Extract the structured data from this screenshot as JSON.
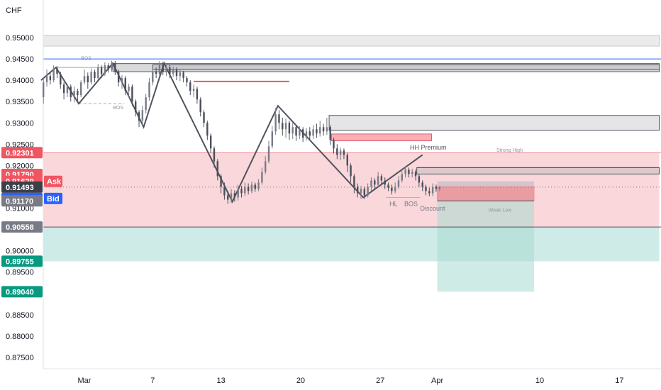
{
  "chart_data": {
    "type": "candlestick",
    "currency_label": "CHF",
    "y_ticks": [
      "0.95000",
      "0.94500",
      "0.94000",
      "0.93500",
      "0.93000",
      "0.92500",
      "0.92000",
      "0.91500",
      "0.91000",
      "0.90500",
      "0.90000",
      "0.89500",
      "0.89000",
      "0.88500",
      "0.88000",
      "0.87500"
    ],
    "x_ticks": [
      {
        "label": "Mar",
        "day": 0
      },
      {
        "label": "7",
        "day": 6
      },
      {
        "label": "13",
        "day": 12
      },
      {
        "label": "20",
        "day": 19
      },
      {
        "label": "27",
        "day": 26
      },
      {
        "label": "Apr",
        "day": 31
      },
      {
        "label": "10",
        "day": 40
      },
      {
        "label": "17",
        "day": 47
      }
    ],
    "ylim": [
      0.8735,
      0.9535
    ],
    "xlim_days": [
      -3.8,
      50.5
    ],
    "colors": {
      "up": "#787b86",
      "down": "#4a4e5a",
      "swing_line": "#50535e",
      "premium_zone": "#f7c9cd",
      "discount_zone": "#c9e9e4",
      "supply_zone": "#f7a6ab",
      "grey_zone": "#d6d6d9",
      "ask": "#f05561",
      "bid": "#2962ff",
      "last": "#505050",
      "green_tag": "#089981",
      "blue_line": "#2962ff"
    },
    "price_tags": [
      {
        "label": "0.92301",
        "value": 0.92301,
        "kind": "red"
      },
      {
        "label": "0.91790",
        "value": 0.9179,
        "kind": "red"
      },
      {
        "label": "0.91629",
        "value": 0.91629,
        "kind": "ask",
        "side_label": "Ask"
      },
      {
        "label": "0.91493",
        "value": 0.91493,
        "kind": "dark"
      },
      {
        "label": "0.91493",
        "value": 0.91493,
        "kind": "bid",
        "side_label": "Bid"
      },
      {
        "label": "0.91170",
        "value": 0.9117,
        "kind": "grey"
      },
      {
        "label": "0.90558",
        "value": 0.90558,
        "kind": "grey"
      },
      {
        "label": "0.89755",
        "value": 0.89755,
        "kind": "green"
      },
      {
        "label": "0.89040",
        "value": 0.8904,
        "kind": "green"
      }
    ],
    "annotations": [
      {
        "text": "BOS",
        "day": -0.3,
        "value": 0.9448
      },
      {
        "text": "BOS",
        "day": 2.5,
        "value": 0.9332
      },
      {
        "text": "HH Premium",
        "day": 28.6,
        "value": 0.9237
      },
      {
        "text": "Strong High",
        "day": 36.2,
        "value": 0.9232
      },
      {
        "text": "HL",
        "day": 26.8,
        "value": 0.9105
      },
      {
        "text": "BOS",
        "day": 28.1,
        "value": 0.9105
      },
      {
        "text": "Discount",
        "day": 29.5,
        "value": 0.9094
      },
      {
        "text": "Weak Low",
        "day": 35.5,
        "value": 0.9092
      }
    ],
    "zones": {
      "top_grey": {
        "x0": -3.8,
        "x1": 50.5,
        "y0": 0.948,
        "y1": 0.9505
      },
      "premium": {
        "x0": -3.8,
        "x1": 50.5,
        "y0": 0.90558,
        "y1": 0.92301
      },
      "discount": {
        "x0": -3.8,
        "x1": 50.5,
        "y0": 0.89755,
        "y1": 0.90558
      },
      "ob_top": {
        "x0": 6.0,
        "x1": 50.5,
        "y0": 0.9425,
        "y1": 0.9436
      },
      "ob_top2": {
        "x0": 2.5,
        "x1": 50.5,
        "y0": 0.942,
        "y1": 0.9439
      },
      "grey_mid": {
        "x0": 21.5,
        "x1": 50.5,
        "y0": 0.92825,
        "y1": 0.93175
      },
      "red_mid": {
        "x0": 21.7,
        "x1": 30.5,
        "y0": 0.9258,
        "y1": 0.9274
      },
      "grey_small": {
        "x0": 29.2,
        "x1": 50.5,
        "y0": 0.918,
        "y1": 0.9195
      },
      "red_box": {
        "x0": 31.0,
        "x1": 39.5,
        "y0": 0.9117,
        "y1": 0.915
      },
      "discount_box": {
        "x0": 31.0,
        "x1": 39.5,
        "y0": 0.8904,
        "y1": 0.9117
      },
      "grey_box2": {
        "x0": 31.0,
        "x1": 39.5,
        "y0": 0.9117,
        "y1": 0.9163
      },
      "red_line": {
        "x0": 9.6,
        "x1": 18.0,
        "value": 0.9397
      },
      "blue_line": {
        "value": 0.945
      }
    },
    "swing_points": [
      {
        "day": -3.8,
        "value": 0.94
      },
      {
        "day": -2.5,
        "value": 0.943
      },
      {
        "day": -0.5,
        "value": 0.9345
      },
      {
        "day": 2.5,
        "value": 0.944
      },
      {
        "day": 5.2,
        "value": 0.929
      },
      {
        "day": 7.0,
        "value": 0.944
      },
      {
        "day": 13.0,
        "value": 0.9115
      },
      {
        "day": 17.0,
        "value": 0.934
      },
      {
        "day": 24.5,
        "value": 0.9125
      },
      {
        "day": 29.7,
        "value": 0.9225
      }
    ],
    "candles": [
      [
        -3.6,
        0.936,
        0.9395,
        0.9405,
        0.9345
      ],
      [
        -3.3,
        0.9395,
        0.941,
        0.9425,
        0.9385
      ],
      [
        -3.0,
        0.941,
        0.94,
        0.942,
        0.939
      ],
      [
        -2.7,
        0.94,
        0.9428,
        0.9435,
        0.9395
      ],
      [
        -2.4,
        0.9428,
        0.9415,
        0.9433,
        0.9405
      ],
      [
        -2.1,
        0.9415,
        0.939,
        0.942,
        0.938
      ],
      [
        -1.8,
        0.939,
        0.937,
        0.9395,
        0.9355
      ],
      [
        -1.5,
        0.937,
        0.9385,
        0.9392,
        0.936
      ],
      [
        -1.2,
        0.9385,
        0.936,
        0.939,
        0.935
      ],
      [
        -0.9,
        0.936,
        0.9375,
        0.9385,
        0.9348
      ],
      [
        -0.6,
        0.9375,
        0.9365,
        0.938,
        0.935
      ],
      [
        -0.3,
        0.9365,
        0.9395,
        0.94,
        0.936
      ],
      [
        0.0,
        0.9395,
        0.941,
        0.9425,
        0.939
      ],
      [
        0.3,
        0.941,
        0.9395,
        0.9418,
        0.938
      ],
      [
        0.6,
        0.9395,
        0.942,
        0.9428,
        0.939
      ],
      [
        0.9,
        0.942,
        0.9405,
        0.9425,
        0.9395
      ],
      [
        1.2,
        0.9405,
        0.943,
        0.9438,
        0.94
      ],
      [
        1.5,
        0.943,
        0.9415,
        0.9435,
        0.9405
      ],
      [
        1.8,
        0.9415,
        0.9435,
        0.9442,
        0.941
      ],
      [
        2.1,
        0.9435,
        0.9425,
        0.944,
        0.9418
      ],
      [
        2.4,
        0.9425,
        0.944,
        0.9446,
        0.942
      ],
      [
        2.7,
        0.944,
        0.942,
        0.9445,
        0.9412
      ],
      [
        3.0,
        0.942,
        0.9395,
        0.9425,
        0.9385
      ],
      [
        3.3,
        0.9395,
        0.9405,
        0.9412,
        0.938
      ],
      [
        3.6,
        0.9405,
        0.9375,
        0.941,
        0.9365
      ],
      [
        3.9,
        0.9375,
        0.9385,
        0.9392,
        0.936
      ],
      [
        4.2,
        0.9385,
        0.935,
        0.939,
        0.934
      ],
      [
        4.5,
        0.935,
        0.9325,
        0.9355,
        0.9315
      ],
      [
        4.8,
        0.9325,
        0.9305,
        0.933,
        0.929
      ],
      [
        5.1,
        0.9305,
        0.933,
        0.934,
        0.9295
      ],
      [
        5.4,
        0.933,
        0.936,
        0.9368,
        0.9322
      ],
      [
        5.7,
        0.936,
        0.9395,
        0.9405,
        0.9352
      ],
      [
        6.0,
        0.9395,
        0.942,
        0.9428,
        0.9388
      ],
      [
        6.3,
        0.942,
        0.9415,
        0.943,
        0.9405
      ],
      [
        6.6,
        0.9415,
        0.9435,
        0.9445,
        0.941
      ],
      [
        6.9,
        0.9435,
        0.942,
        0.9443,
        0.9412
      ],
      [
        7.2,
        0.942,
        0.943,
        0.9438,
        0.941
      ],
      [
        7.5,
        0.943,
        0.9415,
        0.9436,
        0.9405
      ],
      [
        7.8,
        0.9415,
        0.9425,
        0.9432,
        0.9408
      ],
      [
        8.1,
        0.9425,
        0.941,
        0.943,
        0.94
      ],
      [
        8.4,
        0.941,
        0.9418,
        0.9425,
        0.9398
      ],
      [
        8.7,
        0.9418,
        0.9405,
        0.9422,
        0.9395
      ],
      [
        9.0,
        0.9405,
        0.9395,
        0.941,
        0.9385
      ],
      [
        9.3,
        0.9395,
        0.9375,
        0.94,
        0.9365
      ],
      [
        9.6,
        0.9375,
        0.938,
        0.939,
        0.936
      ],
      [
        9.9,
        0.938,
        0.9355,
        0.9385,
        0.9345
      ],
      [
        10.2,
        0.9355,
        0.9325,
        0.936,
        0.9315
      ],
      [
        10.5,
        0.9325,
        0.93,
        0.933,
        0.929
      ],
      [
        10.8,
        0.93,
        0.927,
        0.9305,
        0.926
      ],
      [
        11.1,
        0.927,
        0.924,
        0.9275,
        0.923
      ],
      [
        11.4,
        0.924,
        0.921,
        0.9245,
        0.9195
      ],
      [
        11.7,
        0.921,
        0.9175,
        0.9215,
        0.9165
      ],
      [
        12.0,
        0.9175,
        0.915,
        0.918,
        0.9135
      ],
      [
        12.3,
        0.915,
        0.913,
        0.916,
        0.912
      ],
      [
        12.6,
        0.913,
        0.912,
        0.914,
        0.911
      ],
      [
        12.9,
        0.912,
        0.9135,
        0.9145,
        0.9112
      ],
      [
        13.2,
        0.9135,
        0.9125,
        0.9142,
        0.9115
      ],
      [
        13.5,
        0.9125,
        0.9145,
        0.9155,
        0.9118
      ],
      [
        13.8,
        0.9145,
        0.9135,
        0.9152,
        0.9125
      ],
      [
        14.1,
        0.9135,
        0.915,
        0.916,
        0.9128
      ],
      [
        14.4,
        0.915,
        0.914,
        0.9158,
        0.9132
      ],
      [
        14.7,
        0.914,
        0.9155,
        0.9162,
        0.9135
      ],
      [
        15.0,
        0.9155,
        0.9145,
        0.916,
        0.9138
      ],
      [
        15.3,
        0.9145,
        0.916,
        0.9168,
        0.914
      ],
      [
        15.6,
        0.916,
        0.9185,
        0.9195,
        0.9155
      ],
      [
        15.9,
        0.9185,
        0.921,
        0.9222,
        0.918
      ],
      [
        16.2,
        0.921,
        0.9245,
        0.9258,
        0.9205
      ],
      [
        16.5,
        0.9245,
        0.928,
        0.9292,
        0.924
      ],
      [
        16.8,
        0.928,
        0.932,
        0.9335,
        0.9272
      ],
      [
        17.1,
        0.932,
        0.93,
        0.933,
        0.9285
      ],
      [
        17.4,
        0.93,
        0.9285,
        0.9312,
        0.927
      ],
      [
        17.7,
        0.9285,
        0.93,
        0.931,
        0.9265
      ],
      [
        18.0,
        0.93,
        0.9275,
        0.9305,
        0.926
      ],
      [
        18.3,
        0.9275,
        0.929,
        0.93,
        0.9262
      ],
      [
        18.6,
        0.929,
        0.927,
        0.9295,
        0.9258
      ],
      [
        18.9,
        0.927,
        0.9285,
        0.9292,
        0.9262
      ],
      [
        19.2,
        0.9285,
        0.9265,
        0.929,
        0.9255
      ],
      [
        19.5,
        0.9265,
        0.928,
        0.9288,
        0.9258
      ],
      [
        19.8,
        0.928,
        0.927,
        0.929,
        0.926
      ],
      [
        20.1,
        0.927,
        0.9285,
        0.9295,
        0.9262
      ],
      [
        20.4,
        0.9285,
        0.9275,
        0.9298,
        0.9265
      ],
      [
        20.7,
        0.9275,
        0.929,
        0.9305,
        0.9268
      ],
      [
        21.0,
        0.929,
        0.928,
        0.9298,
        0.927
      ],
      [
        21.3,
        0.928,
        0.929,
        0.9312,
        0.9272
      ],
      [
        21.6,
        0.929,
        0.926,
        0.9295,
        0.9248
      ],
      [
        21.9,
        0.926,
        0.924,
        0.9265,
        0.9228
      ],
      [
        22.2,
        0.924,
        0.9225,
        0.925,
        0.9215
      ],
      [
        22.5,
        0.9225,
        0.9235,
        0.9242,
        0.9212
      ],
      [
        22.8,
        0.9235,
        0.9225,
        0.924,
        0.9215
      ],
      [
        23.1,
        0.9225,
        0.92,
        0.923,
        0.9185
      ],
      [
        23.4,
        0.92,
        0.9175,
        0.9205,
        0.916
      ],
      [
        23.7,
        0.9175,
        0.915,
        0.918,
        0.9135
      ],
      [
        24.0,
        0.915,
        0.9135,
        0.9158,
        0.9125
      ],
      [
        24.3,
        0.9135,
        0.9145,
        0.9152,
        0.9122
      ],
      [
        24.6,
        0.9145,
        0.913,
        0.915,
        0.9122
      ],
      [
        24.9,
        0.913,
        0.915,
        0.9158,
        0.9125
      ],
      [
        25.2,
        0.915,
        0.9165,
        0.9172,
        0.914
      ],
      [
        25.5,
        0.9165,
        0.9155,
        0.917,
        0.9145
      ],
      [
        25.8,
        0.9155,
        0.9175,
        0.9185,
        0.915
      ],
      [
        26.1,
        0.9175,
        0.9165,
        0.918,
        0.9155
      ],
      [
        26.4,
        0.9165,
        0.9155,
        0.9172,
        0.9145
      ],
      [
        26.7,
        0.9155,
        0.9148,
        0.916,
        0.914
      ],
      [
        27.0,
        0.9148,
        0.914,
        0.9155,
        0.9132
      ],
      [
        27.3,
        0.914,
        0.915,
        0.916,
        0.9135
      ],
      [
        27.6,
        0.915,
        0.9165,
        0.9175,
        0.9145
      ],
      [
        27.9,
        0.9165,
        0.918,
        0.9188,
        0.916
      ],
      [
        28.2,
        0.918,
        0.919,
        0.9198,
        0.9172
      ],
      [
        28.5,
        0.919,
        0.918,
        0.9195,
        0.9172
      ],
      [
        28.8,
        0.918,
        0.9185,
        0.9192,
        0.9172
      ],
      [
        29.1,
        0.9185,
        0.9175,
        0.919,
        0.9165
      ],
      [
        29.4,
        0.9175,
        0.916,
        0.918,
        0.915
      ],
      [
        29.7,
        0.916,
        0.915,
        0.9165,
        0.914
      ],
      [
        30.0,
        0.915,
        0.914,
        0.9155,
        0.913
      ],
      [
        30.3,
        0.914,
        0.9135,
        0.9148,
        0.9128
      ],
      [
        30.6,
        0.9135,
        0.915,
        0.9158,
        0.9128
      ],
      [
        30.9,
        0.915,
        0.9145,
        0.9155,
        0.9138
      ],
      [
        31.2,
        0.9145,
        0.9149,
        0.9152,
        0.914
      ]
    ]
  }
}
